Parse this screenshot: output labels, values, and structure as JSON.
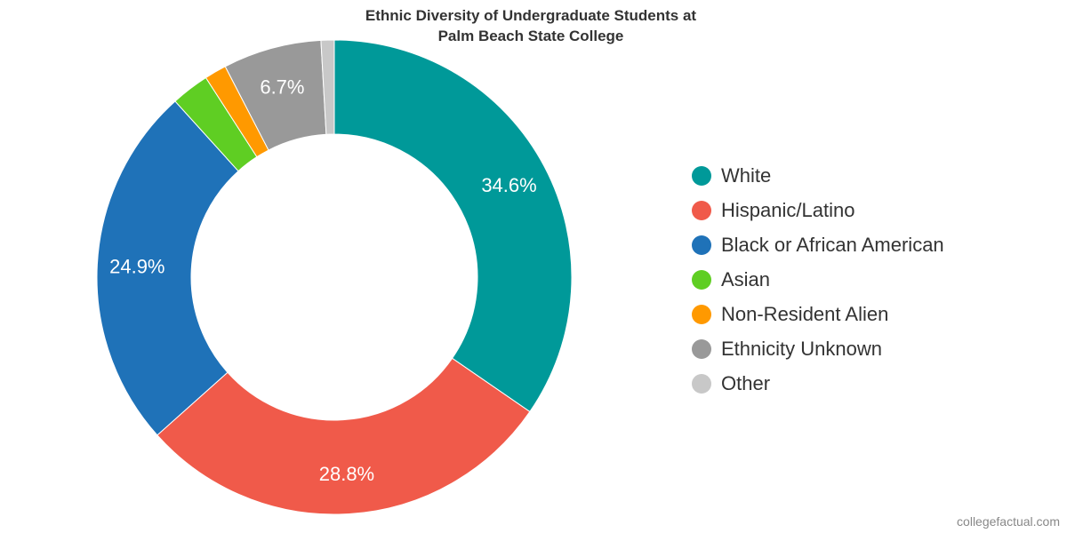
{
  "chart_data": {
    "type": "pie",
    "title_line1": "Ethnic Diversity of Undergraduate Students at",
    "title_line2": "Palm Beach State College",
    "donut": true,
    "legend_position": "right",
    "slices": [
      {
        "name": "White",
        "value": 34.6,
        "color": "#009999",
        "label": "34.6%"
      },
      {
        "name": "Hispanic/Latino",
        "value": 28.8,
        "color": "#f05a4a",
        "label": "28.8%"
      },
      {
        "name": "Black or African American",
        "value": 24.9,
        "color": "#1f72b8",
        "label": "24.9%"
      },
      {
        "name": "Asian",
        "value": 2.6,
        "color": "#5fce23",
        "label": ""
      },
      {
        "name": "Non-Resident Alien",
        "value": 1.5,
        "color": "#ff9900",
        "label": ""
      },
      {
        "name": "Ethnicity Unknown",
        "value": 6.7,
        "color": "#999999",
        "label": "6.7%"
      },
      {
        "name": "Other",
        "value": 0.9,
        "color": "#c8c8c8",
        "label": ""
      }
    ]
  },
  "credit": "collegefactual.com"
}
